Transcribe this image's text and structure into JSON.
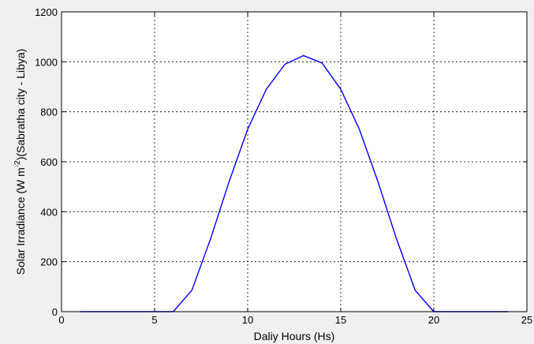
{
  "chart_data": {
    "type": "line",
    "title": "",
    "xlabel": "Daliy Hours (Hs)",
    "ylabel_parts": {
      "before_sup": "Solar Irradiance (W m",
      "sup": "-2",
      "after_sup": ")(Sabratha city - Libya)"
    },
    "xlim": [
      0,
      25
    ],
    "ylim": [
      0,
      1200
    ],
    "xticks": [
      0,
      5,
      10,
      15,
      20,
      25
    ],
    "yticks": [
      0,
      200,
      400,
      600,
      800,
      1000,
      1200
    ],
    "grid": true,
    "legend": "none",
    "series": [
      {
        "color": "#0000ff",
        "x": [
          1,
          2,
          3,
          4,
          5,
          6,
          7,
          8,
          9,
          10,
          11,
          12,
          13,
          14,
          15,
          16,
          17,
          18,
          19,
          20,
          21,
          22,
          23,
          24
        ],
        "y": [
          0,
          0,
          0,
          0,
          0,
          0,
          85,
          290,
          520,
          730,
          890,
          990,
          1025,
          995,
          890,
          730,
          520,
          290,
          85,
          0,
          0,
          0,
          0,
          0
        ]
      }
    ]
  },
  "colors": {
    "figure_background": "#f0f0f0",
    "axes_background": "#ffffff",
    "line": "#0000ff"
  }
}
